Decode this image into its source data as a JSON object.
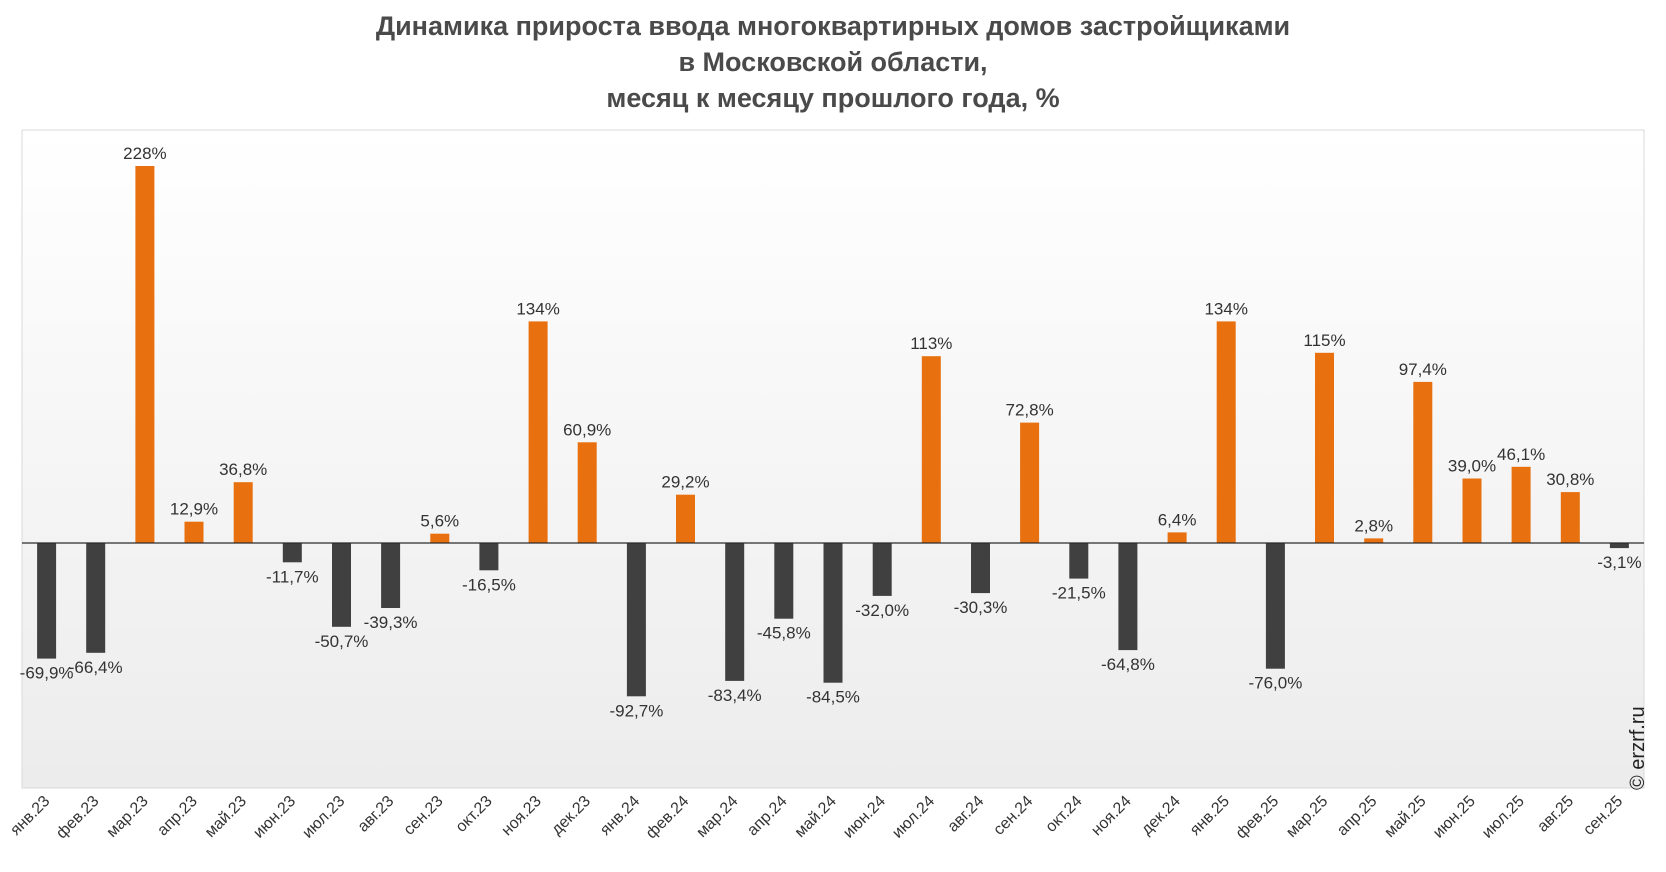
{
  "title_lines": [
    "Динамика прироста ввода многоквартирных домов застройщиками",
    "в Московской области,",
    "месяц к месяцу прошлого года, %"
  ],
  "watermark": "© erzrf.ru",
  "colors": {
    "positive": "#e8700f",
    "negative": "#404040",
    "background_top": "#ffffff",
    "background_bottom": "#ececec"
  },
  "chart_data": {
    "type": "bar",
    "title": "Динамика прироста ввода многоквартирных домов застройщиками в Московской области, месяц к месяцу прошлого года, %",
    "xlabel": "",
    "ylabel": "",
    "grid": false,
    "ylim": [
      -150,
      250
    ],
    "categories": [
      "янв.23",
      "фев.23",
      "мар.23",
      "апр.23",
      "май.23",
      "июн.23",
      "июл.23",
      "авг.23",
      "сен.23",
      "окт.23",
      "ноя.23",
      "дек.23",
      "янв.24",
      "фев.24",
      "мар.24",
      "апр.24",
      "май.24",
      "июн.24",
      "июл.24",
      "авг.24",
      "сен.24",
      "окт.24",
      "ноя.24",
      "дек.24",
      "янв.25",
      "фев.25",
      "мар.25",
      "апр.25",
      "май.25",
      "июн.25",
      "июл.25",
      "авг.25",
      "сен.25"
    ],
    "values": [
      -69.9,
      -66.4,
      228,
      12.9,
      36.8,
      -11.7,
      -50.7,
      -39.3,
      5.6,
      -16.5,
      134,
      60.9,
      -92.7,
      29.2,
      -83.4,
      -45.8,
      -84.5,
      -32.0,
      113,
      -30.3,
      72.8,
      -21.5,
      -64.8,
      6.4,
      134,
      -76.0,
      115,
      2.8,
      97.4,
      39.0,
      46.1,
      30.8,
      -3.1
    ],
    "labels": [
      "-69,9%",
      "-66,4%",
      "228%",
      "12,9%",
      "36,8%",
      "-11,7%",
      "-50,7%",
      "-39,3%",
      "5,6%",
      "-16,5%",
      "134%",
      "60,9%",
      "-92,7%",
      "29,2%",
      "-83,4%",
      "-45,8%",
      "-84,5%",
      "-32,0%",
      "113%",
      "-30,3%",
      "72,8%",
      "-21,5%",
      "-64,8%",
      "6,4%",
      "134%",
      "-76,0%",
      "115%",
      "2,8%",
      "97,4%",
      "39,0%",
      "46,1%",
      "30,8%",
      "-3,1%"
    ]
  }
}
